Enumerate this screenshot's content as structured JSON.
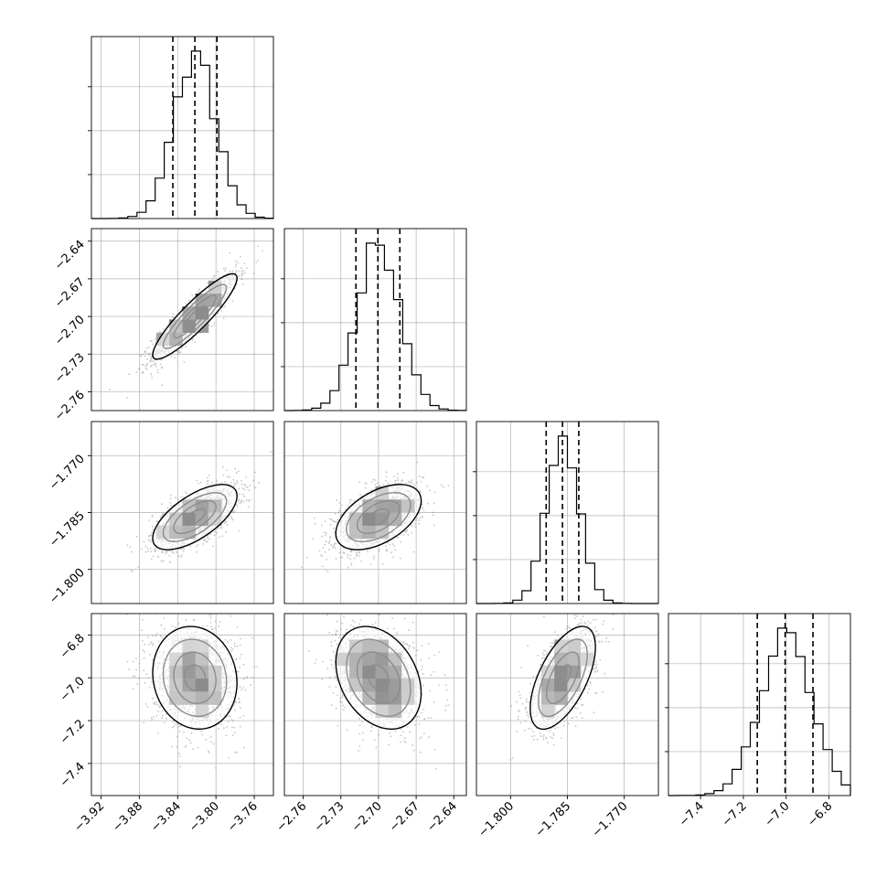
{
  "chart_data": {
    "type": "corner",
    "title": "",
    "grid": true,
    "colors": {
      "line": "#000000",
      "scatter": "#9a9a9a",
      "grid": "#b0b0b0"
    },
    "parameters": [
      {
        "index": 0,
        "range": [
          -3.93,
          -3.74
        ],
        "ticks": [
          -3.92,
          -3.88,
          -3.84,
          -3.8,
          -3.76
        ],
        "tick_labels": [
          "−3.92",
          "−3.88",
          "−3.84",
          "−3.80",
          "−3.76"
        ],
        "quantiles": [
          -3.845,
          -3.822,
          -3.799
        ],
        "mean": -3.822,
        "sd": 0.022
      },
      {
        "index": 1,
        "range": [
          -2.775,
          -2.63
        ],
        "ticks": [
          -2.76,
          -2.73,
          -2.7,
          -2.67,
          -2.64
        ],
        "tick_labels": [
          "−2.76",
          "−2.73",
          "−2.70",
          "−2.67",
          "−2.64"
        ],
        "quantiles": [
          -2.718,
          -2.7005,
          -2.683
        ],
        "mean": -2.7,
        "sd": 0.017
      },
      {
        "index": 2,
        "range": [
          -1.809,
          -1.761
        ],
        "ticks": [
          -1.8,
          -1.785,
          -1.77
        ],
        "tick_labels": [
          "−1.800",
          "−1.785",
          "−1.770"
        ],
        "quantiles": [
          -1.7906,
          -1.7863,
          -1.782
        ],
        "mean": -1.7862,
        "sd": 0.0043
      },
      {
        "index": 3,
        "range": [
          -7.55,
          -6.7
        ],
        "ticks": [
          -7.4,
          -7.2,
          -7.0,
          -6.8
        ],
        "tick_labels": [
          "−7.4",
          "−7.2",
          "−7.0",
          "−6.8"
        ],
        "quantiles": [
          -7.135,
          -7.005,
          -6.875
        ],
        "mean": -7.0,
        "sd": 0.12
      }
    ],
    "pairs": [
      {
        "x": 0,
        "y": 1,
        "correlation": 0.9
      },
      {
        "x": 0,
        "y": 2,
        "correlation": 0.65
      },
      {
        "x": 1,
        "y": 2,
        "correlation": 0.5
      },
      {
        "x": 0,
        "y": 3,
        "correlation": -0.1
      },
      {
        "x": 1,
        "y": 3,
        "correlation": -0.3
      },
      {
        "x": 2,
        "y": 3,
        "correlation": 0.6
      }
    ],
    "hist_bins": 20,
    "contour_levels": [
      "0.118",
      "0.393",
      "0.675",
      "0.865"
    ]
  }
}
